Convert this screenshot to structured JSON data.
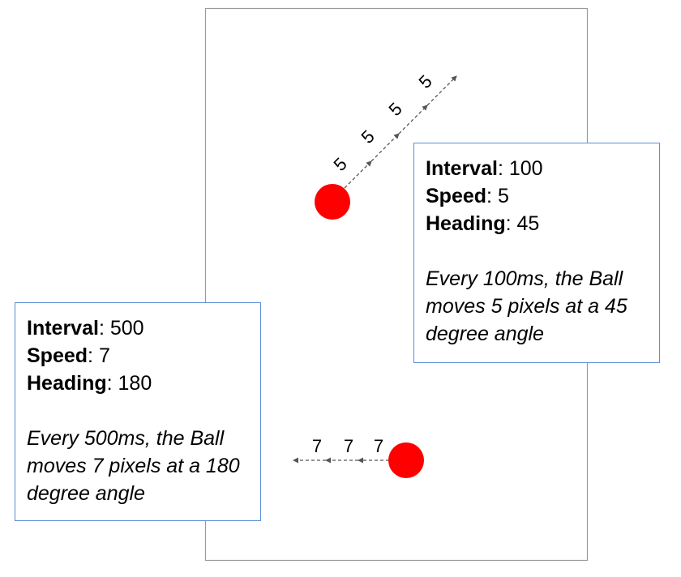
{
  "colors": {
    "ball": "#ff0000",
    "box_border": "#5b8fd6",
    "frame_border": "#9a9a9a",
    "arrow": "#555555"
  },
  "ball_top": {
    "interval_label": "Interval",
    "interval_value": "100",
    "speed_label": "Speed",
    "speed_value": "5",
    "heading_label": "Heading",
    "heading_value": "45",
    "description": "Every 100ms, the Ball moves 5 pixels at a 45 degree angle",
    "steps": [
      "5",
      "5",
      "5",
      "5"
    ]
  },
  "ball_bottom": {
    "interval_label": "Interval",
    "interval_value": "500",
    "speed_label": "Speed",
    "speed_value": "7",
    "heading_label": "Heading",
    "heading_value": "180",
    "description": "Every 500ms, the Ball moves 7 pixels at a 180 degree angle",
    "steps": [
      "7",
      "7",
      "7"
    ]
  }
}
